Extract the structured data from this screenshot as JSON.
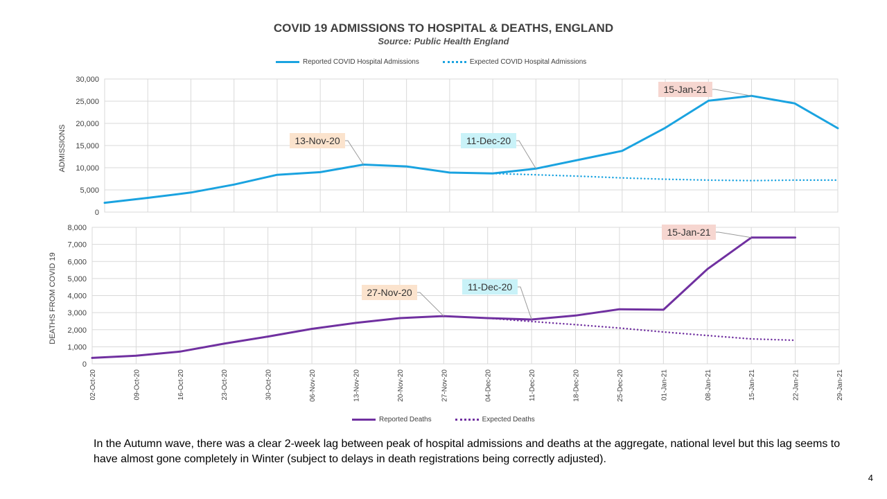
{
  "title": "COVID 19 ADMISSIONS TO HOSPITAL & DEATHS, ENGLAND",
  "subtitle": "Source: Public Health England",
  "caption": "In the Autumn wave, there was a clear 2-week lag between peak of hospital admissions and deaths at the aggregate, national level but this lag seems to have almost gone completely in Winter (subject to delays in death registrations being correctly adjusted).",
  "page_number": "4",
  "colors": {
    "admissions": "#1aa3e0",
    "deaths": "#7030a0",
    "callout_peach": "#fbe3cd",
    "callout_cyan": "#c9f2f8",
    "callout_pink": "#f6d6d0"
  },
  "chart_data": [
    {
      "type": "line",
      "ylabel": "ADMISSIONS",
      "ylim": [
        0,
        30000
      ],
      "yticks": [
        0,
        5000,
        10000,
        15000,
        20000,
        25000,
        30000
      ],
      "ytick_labels": [
        "0",
        "5,000",
        "10,000",
        "15,000",
        "20,000",
        "25,000",
        "30,000"
      ],
      "grid": true,
      "legend_position": "top",
      "x": [
        "02-Oct-20",
        "09-Oct-20",
        "16-Oct-20",
        "23-Oct-20",
        "30-Oct-20",
        "06-Nov-20",
        "13-Nov-20",
        "20-Nov-20",
        "27-Nov-20",
        "04-Dec-20",
        "11-Dec-20",
        "18-Dec-20",
        "25-Dec-20",
        "01-Jan-21",
        "08-Jan-21",
        "15-Jan-21",
        "22-Jan-21",
        "29-Jan-21"
      ],
      "series": [
        {
          "name": "Reported COVID Hospital Admissions",
          "style": "solid",
          "values": [
            2100,
            3200,
            4400,
            6200,
            8400,
            9000,
            10700,
            10300,
            8900,
            8700,
            9800,
            11800,
            13800,
            19000,
            25100,
            26200,
            24500,
            18900
          ]
        },
        {
          "name": "Expected COVID Hospital Admissions",
          "style": "dotted",
          "values": [
            null,
            null,
            null,
            null,
            null,
            null,
            null,
            null,
            null,
            8700,
            8400,
            8100,
            7700,
            7400,
            7200,
            7100,
            7200,
            7200
          ]
        }
      ],
      "annotations": [
        {
          "text": "13-Nov-20",
          "x": "13-Nov-20",
          "y": 10700,
          "fill": "callout_peach"
        },
        {
          "text": "11-Dec-20",
          "x": "11-Dec-20",
          "y": 9800,
          "fill": "callout_cyan"
        },
        {
          "text": "15-Jan-21",
          "x": "15-Jan-21",
          "y": 26200,
          "fill": "callout_pink"
        }
      ]
    },
    {
      "type": "line",
      "ylabel": "DEATHS FROM COVID 19",
      "ylim": [
        0,
        8000
      ],
      "yticks": [
        0,
        1000,
        2000,
        3000,
        4000,
        5000,
        6000,
        7000,
        8000
      ],
      "ytick_labels": [
        "0",
        "1,000",
        "2,000",
        "3,000",
        "4,000",
        "5,000",
        "6,000",
        "7,000",
        "8,000"
      ],
      "grid": true,
      "legend_position": "bottom",
      "x": [
        "02-Oct-20",
        "09-Oct-20",
        "16-Oct-20",
        "23-Oct-20",
        "30-Oct-20",
        "06-Nov-20",
        "13-Nov-20",
        "20-Nov-20",
        "27-Nov-20",
        "04-Dec-20",
        "11-Dec-20",
        "18-Dec-20",
        "25-Dec-20",
        "01-Jan-21",
        "08-Jan-21",
        "15-Jan-21",
        "22-Jan-21",
        "29-Jan-21"
      ],
      "series": [
        {
          "name": "Reported Deaths",
          "style": "solid",
          "values": [
            350,
            480,
            720,
            1180,
            1600,
            2050,
            2400,
            2680,
            2800,
            2680,
            2600,
            2830,
            3200,
            3170,
            5550,
            7400,
            7400,
            null
          ]
        },
        {
          "name": "Expected Deaths",
          "style": "dotted",
          "values": [
            null,
            null,
            null,
            null,
            null,
            null,
            null,
            null,
            2800,
            2680,
            2480,
            2300,
            2100,
            1870,
            1660,
            1460,
            1380,
            null
          ]
        }
      ],
      "annotations": [
        {
          "text": "27-Nov-20",
          "x": "27-Nov-20",
          "y": 2800,
          "fill": "callout_peach"
        },
        {
          "text": "11-Dec-20",
          "x": "11-Dec-20",
          "y": 2600,
          "fill": "callout_cyan"
        },
        {
          "text": "15-Jan-21",
          "x": "15-Jan-21",
          "y": 7400,
          "fill": "callout_pink"
        }
      ]
    }
  ]
}
